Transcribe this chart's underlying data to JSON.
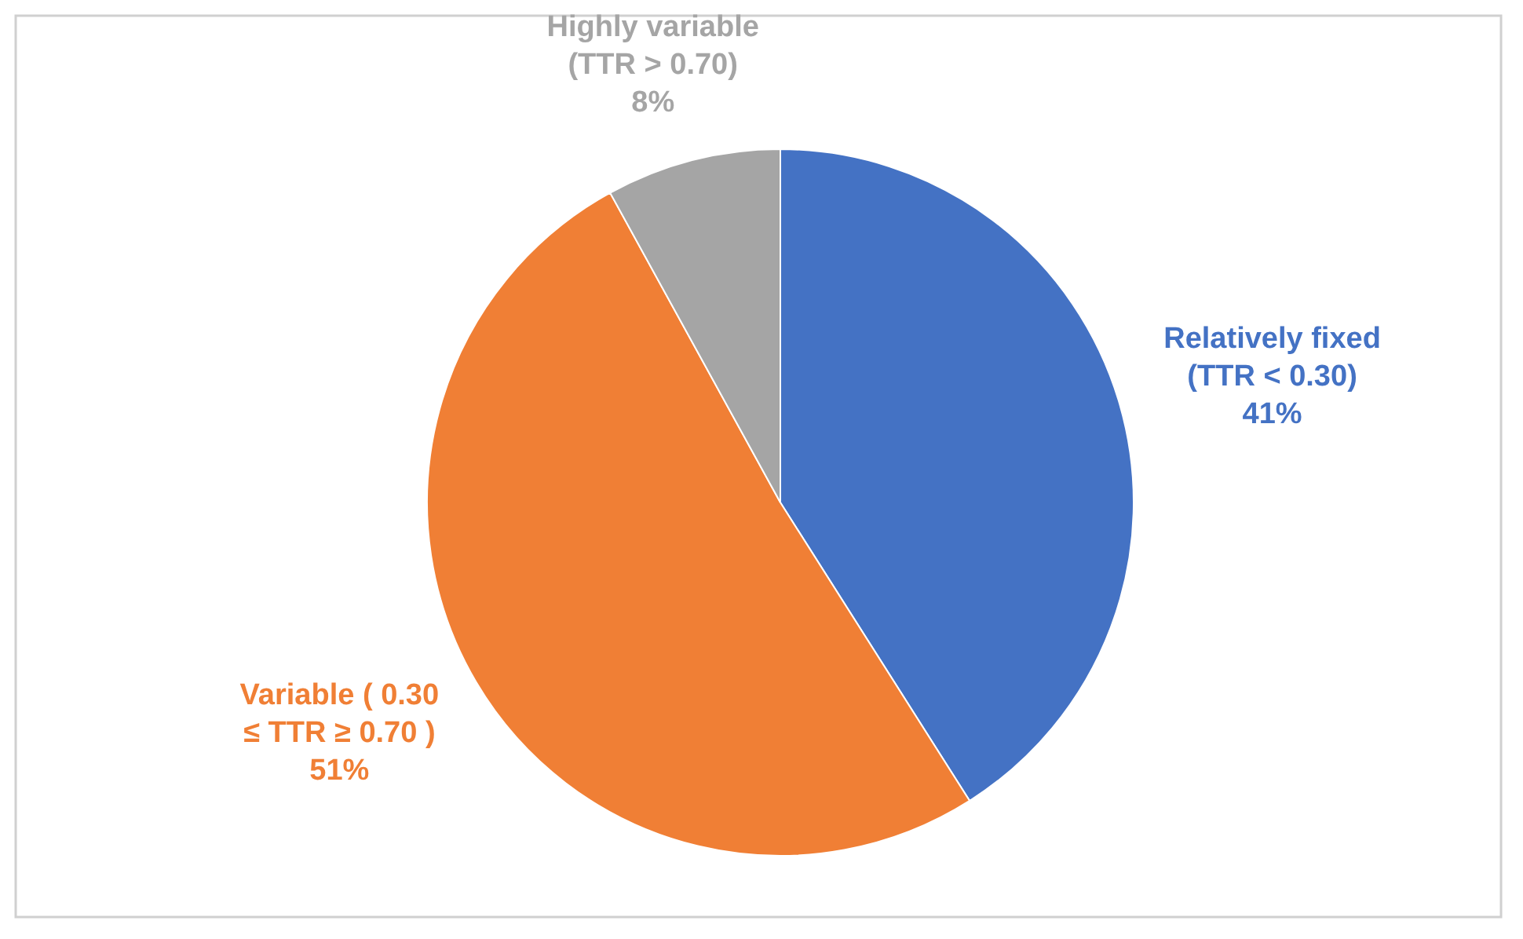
{
  "chart_data": {
    "type": "pie",
    "categories": [
      "Relatively fixed (TTR < 0.30)",
      "Variable ( 0.30 ≤ TTR ≥ 0.70 )",
      "Highly variable (TTR > 0.70)"
    ],
    "values": [
      41,
      51,
      8
    ],
    "colors": [
      "#4472c4",
      "#f07f35",
      "#a5a5a5"
    ],
    "value_labels": [
      "41%",
      "51%",
      "8%"
    ]
  }
}
